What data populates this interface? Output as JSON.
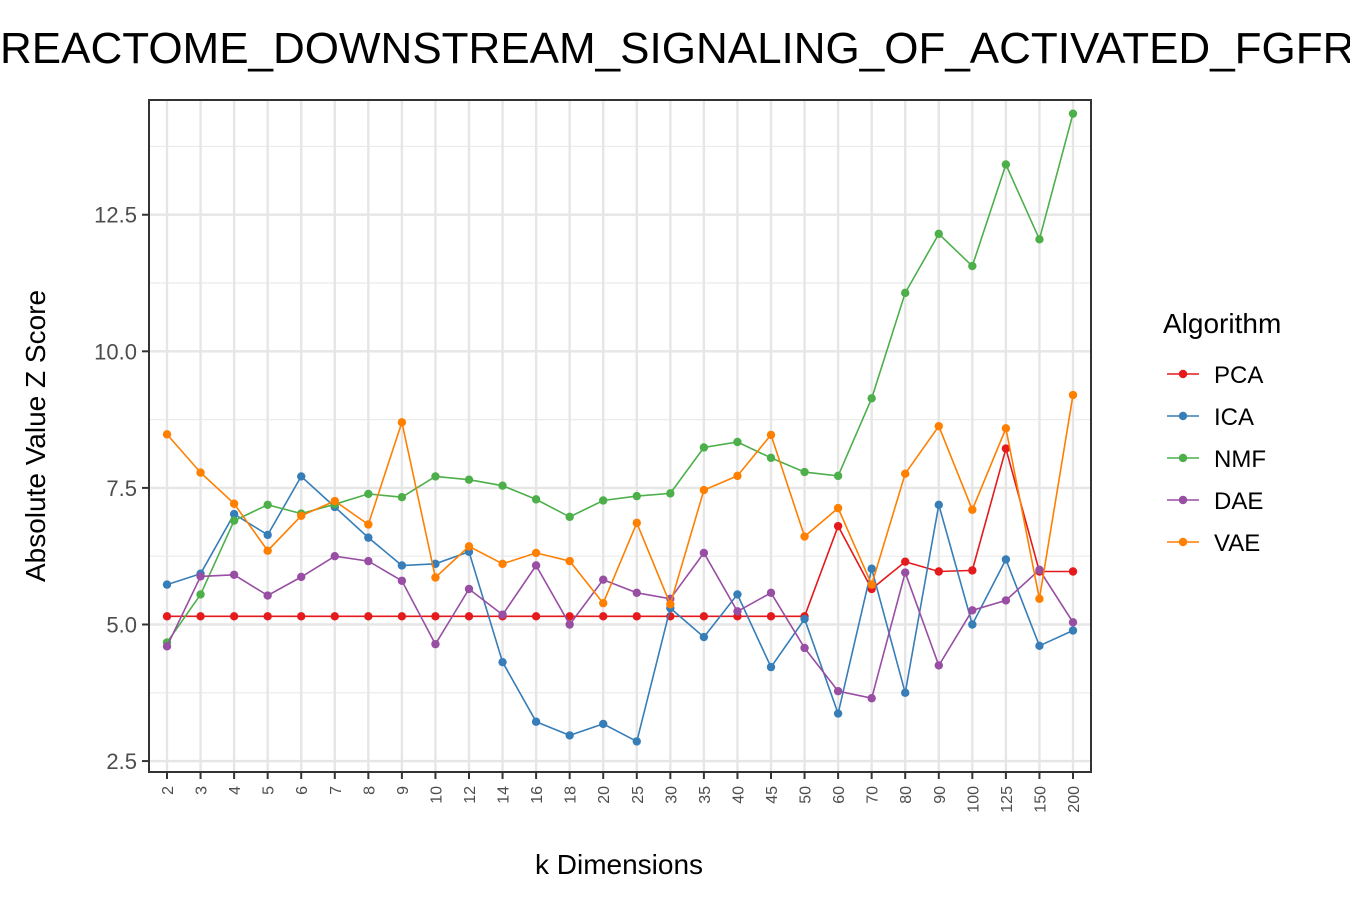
{
  "chart_data": {
    "type": "line",
    "title": "REACTOME_DOWNSTREAM_SIGNALING_OF_ACTIVATED_FGFR",
    "xlabel": "k Dimensions",
    "ylabel": "Absolute Value Z Score",
    "legend_title": "Algorithm",
    "legend_position": "right",
    "grid": true,
    "ylim": [
      2.3,
      14.6
    ],
    "y_ticks": [
      "2.5",
      "5.0",
      "7.5",
      "10.0",
      "12.5"
    ],
    "y_tick_values": [
      2.5,
      5.0,
      7.5,
      10.0,
      12.5
    ],
    "categories": [
      "2",
      "3",
      "4",
      "5",
      "6",
      "7",
      "8",
      "9",
      "10",
      "12",
      "14",
      "16",
      "18",
      "20",
      "25",
      "30",
      "35",
      "40",
      "45",
      "50",
      "60",
      "70",
      "80",
      "90",
      "100",
      "125",
      "150",
      "200"
    ],
    "series": [
      {
        "name": "PCA",
        "color": "#E41A1C",
        "values": [
          5.15,
          5.15,
          5.15,
          5.15,
          5.15,
          5.15,
          5.15,
          5.15,
          5.15,
          5.15,
          5.15,
          5.15,
          5.15,
          5.15,
          5.15,
          5.15,
          5.15,
          5.15,
          5.15,
          5.15,
          6.8,
          5.65,
          6.15,
          5.97,
          5.99,
          8.22,
          5.97,
          5.97
        ]
      },
      {
        "name": "ICA",
        "color": "#377EB8",
        "values": [
          5.73,
          5.93,
          7.02,
          6.64,
          7.71,
          7.15,
          6.59,
          6.08,
          6.11,
          6.33,
          4.31,
          3.22,
          2.97,
          3.18,
          2.86,
          5.3,
          4.77,
          5.55,
          4.22,
          5.1,
          3.37,
          6.02,
          3.75,
          7.19,
          5.0,
          6.19,
          4.61,
          4.89
        ]
      },
      {
        "name": "NMF",
        "color": "#4DAF4A",
        "values": [
          4.67,
          5.55,
          6.9,
          7.19,
          7.03,
          7.2,
          7.39,
          7.33,
          7.71,
          7.65,
          7.54,
          7.29,
          6.97,
          7.27,
          7.35,
          7.4,
          8.24,
          8.34,
          8.05,
          7.79,
          7.72,
          9.14,
          11.07,
          12.15,
          11.56,
          13.42,
          12.05,
          14.35
        ]
      },
      {
        "name": "DAE",
        "color": "#984EA3",
        "values": [
          4.6,
          5.88,
          5.91,
          5.53,
          5.87,
          6.25,
          6.16,
          5.8,
          4.64,
          5.65,
          5.18,
          6.08,
          5.0,
          5.82,
          5.58,
          5.47,
          6.31,
          5.24,
          5.58,
          4.57,
          3.78,
          3.65,
          5.95,
          4.25,
          5.26,
          5.44,
          6.0,
          5.04
        ]
      },
      {
        "name": "VAE",
        "color": "#FF7F00",
        "values": [
          8.48,
          7.78,
          7.21,
          6.35,
          6.99,
          7.26,
          6.83,
          8.7,
          5.86,
          6.43,
          6.11,
          6.31,
          6.16,
          5.39,
          6.86,
          5.37,
          7.46,
          7.72,
          8.47,
          6.61,
          7.13,
          5.73,
          7.76,
          8.63,
          7.1,
          8.59,
          5.47,
          9.2
        ]
      }
    ]
  }
}
